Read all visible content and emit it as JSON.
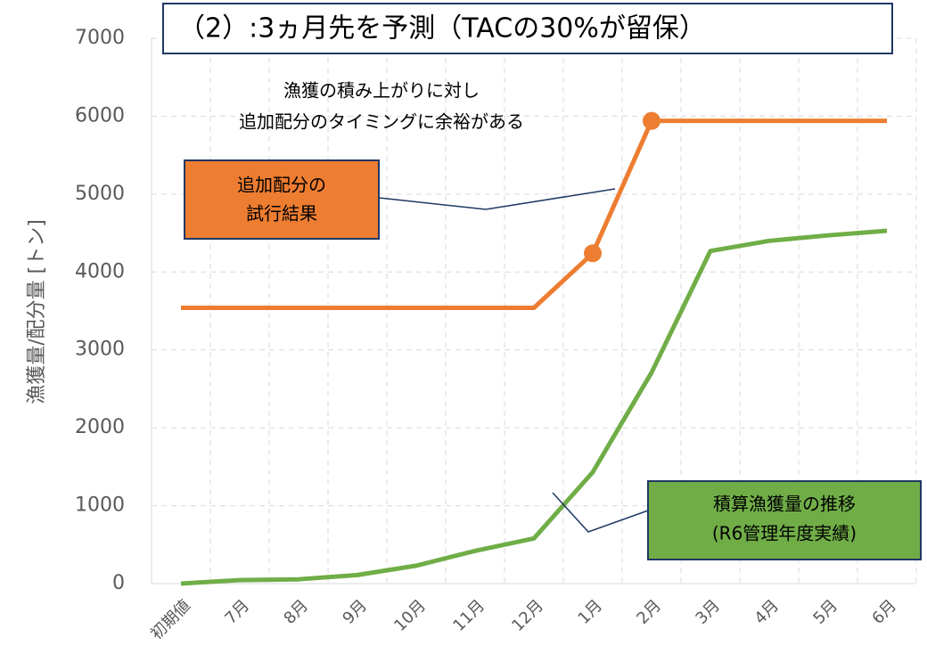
{
  "chart_data": {
    "type": "line",
    "title": "（2）:3ヵ月先を予測（TACの30%が留保）",
    "y_label": "漁獲量/配分量 [トン]",
    "categories": [
      "初期値",
      "7月",
      "8月",
      "9月",
      "10月",
      "11月",
      "12月",
      "1月",
      "2月",
      "3月",
      "4月",
      "5月",
      "6月"
    ],
    "series": [
      {
        "color": "#ed7d31",
        "values": [
          3540,
          3540,
          3540,
          3540,
          3540,
          3540,
          3540,
          4240,
          5940,
          5940,
          5940,
          5940,
          5940
        ],
        "marker_indices": [
          7,
          8
        ]
      },
      {
        "color": "#70ad47",
        "values": [
          0,
          45,
          55,
          110,
          230,
          420,
          580,
          1430,
          2710,
          4270,
          4400,
          4470,
          4530
        ]
      }
    ],
    "ylim": [
      0,
      7000
    ],
    "yticks": [
      0,
      1000,
      2000,
      3000,
      4000,
      5000,
      6000,
      7000
    ],
    "grid": true,
    "annotations": {
      "note": [
        "漁獲の積み上がりに対し",
        "追加配分のタイミングに余裕がある"
      ],
      "orange_box": [
        "追加配分の",
        "試行結果"
      ],
      "green_box": [
        "積算漁獲量の推移",
        "(R6管理年度実績)"
      ]
    }
  }
}
